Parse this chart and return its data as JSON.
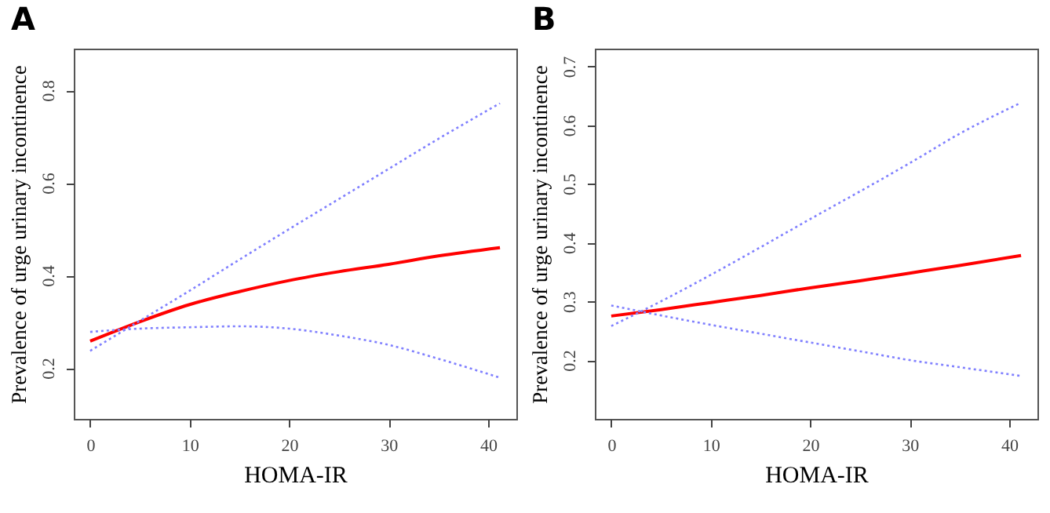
{
  "chart_data": [
    {
      "type": "line",
      "title": "A",
      "xlabel": "HOMA-IR",
      "ylabel": "Prevalence of urge urinary incontinence",
      "x": [
        0,
        5,
        10,
        15,
        20,
        25,
        30,
        35,
        41.2
      ],
      "xlim": [
        -1.65,
        42.85
      ],
      "xticks": [
        0,
        10,
        20,
        30,
        40
      ],
      "ylim": [
        0.09,
        0.89
      ],
      "yticks": [
        0.2,
        0.4,
        0.6,
        0.8
      ],
      "grid": false,
      "series": [
        {
          "color": "#ff0000",
          "line_style": "solid",
          "values": [
            0.258,
            0.3,
            0.337,
            0.365,
            0.389,
            0.408,
            0.424,
            0.442,
            0.46
          ]
        },
        {
          "color": "#8080ff",
          "line_style": "dotted",
          "values": [
            0.237,
            0.302,
            0.367,
            0.434,
            0.5,
            0.565,
            0.63,
            0.695,
            0.772
          ]
        },
        {
          "color": "#8080ff",
          "line_style": "dotted",
          "values": [
            0.278,
            0.285,
            0.288,
            0.29,
            0.285,
            0.27,
            0.25,
            0.22,
            0.179
          ]
        }
      ]
    },
    {
      "type": "line",
      "title": "B",
      "xlabel": "HOMA-IR",
      "ylabel": "Prevalence of urge urinary incontinence",
      "x": [
        0,
        5,
        10,
        15,
        20,
        25,
        30,
        35,
        41.2
      ],
      "xlim": [
        -1.65,
        42.85
      ],
      "xticks": [
        0,
        10,
        20,
        30,
        40
      ],
      "ylim": [
        0.1,
        0.73
      ],
      "yticks": [
        0.2,
        0.3,
        0.4,
        0.5,
        0.6,
        0.7
      ],
      "grid": false,
      "series": [
        {
          "color": "#ff0000",
          "line_style": "solid",
          "values": [
            0.275,
            0.286,
            0.298,
            0.31,
            0.323,
            0.335,
            0.348,
            0.361,
            0.378
          ]
        },
        {
          "color": "#8080ff",
          "line_style": "dotted",
          "values": [
            0.258,
            0.3,
            0.345,
            0.392,
            0.44,
            0.487,
            0.535,
            0.585,
            0.638
          ]
        },
        {
          "color": "#8080ff",
          "line_style": "dotted",
          "values": [
            0.293,
            0.276,
            0.26,
            0.245,
            0.23,
            0.215,
            0.2,
            0.188,
            0.173
          ]
        }
      ]
    }
  ]
}
